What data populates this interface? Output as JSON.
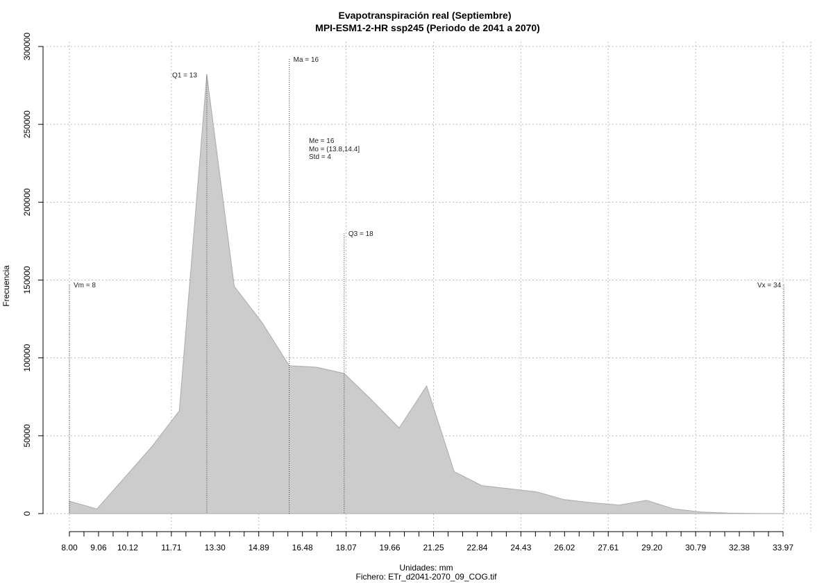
{
  "chart_data": {
    "type": "area",
    "title": "Evapotranspiración real (Septiembre)",
    "subtitle": "MPI-ESM1-2-HR ssp245 (Periodo de 2041 a 2070)",
    "xlabel": "Unidades: mm",
    "caption": "Fichero: ETr_d2041-2070_09_COG.tif",
    "ylabel": "Frecuencia",
    "xlim": [
      8.0,
      33.97
    ],
    "ylim": [
      0,
      300000
    ],
    "x_tick_labels": [
      "8.00",
      "9.06",
      "10.12",
      "11.71",
      "13.30",
      "14.89",
      "16.48",
      "18.07",
      "19.66",
      "21.25",
      "22.84",
      "24.43",
      "26.02",
      "27.61",
      "29.20",
      "30.79",
      "32.38",
      "33.97"
    ],
    "x_tick_values": [
      8.0,
      9.06,
      10.12,
      11.71,
      13.3,
      14.89,
      16.48,
      18.07,
      19.66,
      21.25,
      22.84,
      24.43,
      26.02,
      27.61,
      29.2,
      30.79,
      32.38,
      33.97
    ],
    "x_minor_tick_values": [
      8.0,
      8.53,
      9.06,
      9.59,
      10.12,
      10.65,
      11.18,
      11.71,
      12.24,
      12.77,
      13.3,
      13.83,
      14.36,
      14.89,
      15.42,
      15.95,
      16.48,
      17.01,
      17.54,
      18.07,
      18.6,
      19.13,
      19.66,
      20.19,
      20.72,
      21.25,
      21.78,
      22.31,
      22.84,
      23.37,
      23.9,
      24.43,
      24.96,
      25.49,
      26.02,
      26.55,
      27.08,
      27.61,
      28.14,
      28.67,
      29.2,
      29.73,
      30.26,
      30.79,
      31.32,
      31.85,
      32.38,
      32.91,
      33.44,
      33.97
    ],
    "y_tick_labels": [
      "0",
      "50000",
      "100000",
      "150000",
      "200000",
      "250000",
      "300000"
    ],
    "y_tick_values": [
      0,
      50000,
      100000,
      150000,
      200000,
      250000,
      300000
    ],
    "grid": true,
    "x": [
      8.0,
      9.0,
      10.0,
      11.0,
      12.0,
      13.0,
      14.0,
      15.0,
      16.0,
      17.0,
      18.0,
      19.0,
      20.0,
      21.0,
      22.0,
      23.0,
      24.0,
      25.0,
      26.0,
      27.0,
      28.0,
      29.0,
      30.0,
      31.0,
      32.0,
      33.0,
      34.0
    ],
    "y": [
      8000,
      3000,
      23000,
      43000,
      66000,
      282000,
      146000,
      123000,
      95000,
      94000,
      90000,
      73000,
      55000,
      82000,
      27000,
      18000,
      16000,
      14000,
      9000,
      7000,
      5500,
      8500,
      3000,
      1000,
      300,
      100,
      50
    ],
    "markers": [
      {
        "label": "Vm = 8",
        "x": 8,
        "y_top": 147000
      },
      {
        "label": "Q1 = 13",
        "x": 13,
        "y_top": 282000
      },
      {
        "label": "Ma = 16",
        "x": 16,
        "y_top": 292000
      },
      {
        "label": "Q3 = 18",
        "x": 18,
        "y_top": 180000
      },
      {
        "label": "Vx = 34",
        "x": 34,
        "y_top": 147000
      }
    ],
    "stats": [
      "Me = 16",
      "Mo = (13.8,14.4]",
      "Std = 4"
    ]
  },
  "colors": {
    "fill": "#cccccc",
    "outline": "#aaaaaa",
    "grid": "#bbbbbb",
    "marker": "#333333"
  }
}
